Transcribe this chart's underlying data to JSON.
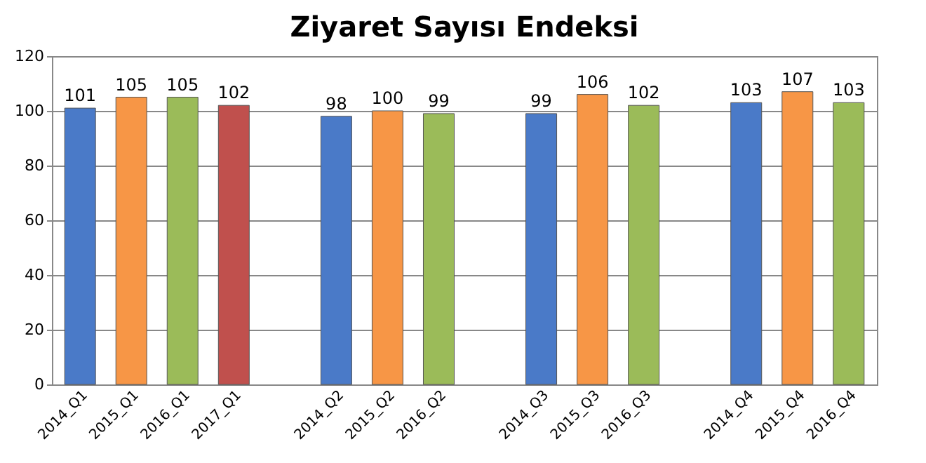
{
  "chart_data": {
    "type": "bar",
    "title": "Ziyaret Sayısı Endeksi",
    "categories": [
      "2014_Q1",
      "2015_Q1",
      "2016_Q1",
      "2017_Q1",
      null,
      "2014_Q2",
      "2015_Q2",
      "2016_Q2",
      null,
      "2014_Q3",
      "2015_Q3",
      "2016_Q3",
      null,
      "2014_Q4",
      "2015_Q4",
      "2016_Q4"
    ],
    "values": [
      101,
      105,
      105,
      102,
      null,
      98,
      100,
      99,
      null,
      99,
      106,
      102,
      null,
      103,
      107,
      103
    ],
    "colors": [
      "#4a7ac8",
      "#f79646",
      "#9bbb59",
      "#c0504d",
      null,
      "#4a7ac8",
      "#f79646",
      "#9bbb59",
      null,
      "#4a7ac8",
      "#f79646",
      "#9bbb59",
      null,
      "#4a7ac8",
      "#f79646",
      "#9bbb59"
    ],
    "ylim": [
      0,
      120
    ],
    "yticks": [
      0,
      20,
      40,
      60,
      80,
      100,
      120
    ],
    "grid": "y",
    "data_labels": true
  }
}
